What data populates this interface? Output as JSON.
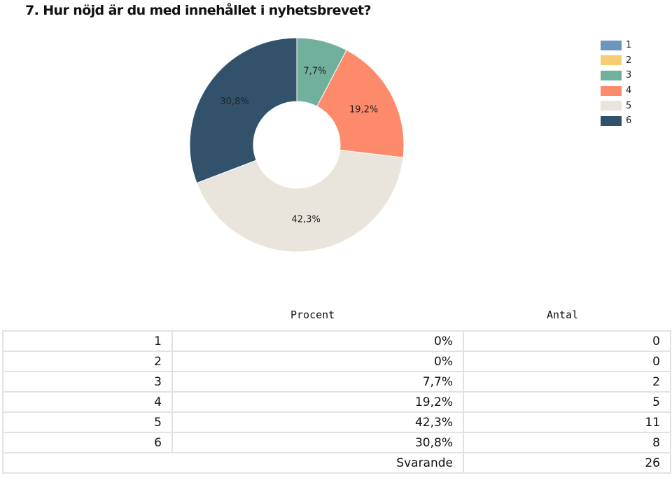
{
  "title": "7. Hur nöjd är du med innehållet i nyhetsbrevet?",
  "chart_data": {
    "type": "pie",
    "style": "donut",
    "title": "7. Hur nöjd är du med innehållet i nyhetsbrevet?",
    "categories": [
      "1",
      "2",
      "3",
      "4",
      "5",
      "6"
    ],
    "values": [
      0,
      0,
      7.7,
      19.2,
      42.3,
      30.8
    ],
    "labels": [
      "0%",
      "0%",
      "7,7%",
      "19,2%",
      "42,3%",
      "30,8%"
    ],
    "colors": [
      "#6b96bd",
      "#f8cc72",
      "#72b09e",
      "#fd8a6b",
      "#e9e5dd",
      "#31526a"
    ],
    "legend_position": "top-right"
  },
  "legend": [
    "1",
    "2",
    "3",
    "4",
    "5",
    "6"
  ],
  "table": {
    "headers": {
      "percent": "Procent",
      "count": "Antal"
    },
    "rows": [
      {
        "label": "1",
        "percent": "0%",
        "count": "0"
      },
      {
        "label": "2",
        "percent": "0%",
        "count": "0"
      },
      {
        "label": "3",
        "percent": "7,7%",
        "count": "2"
      },
      {
        "label": "4",
        "percent": "19,2%",
        "count": "5"
      },
      {
        "label": "5",
        "percent": "42,3%",
        "count": "11"
      },
      {
        "label": "6",
        "percent": "30,8%",
        "count": "8"
      }
    ],
    "total": {
      "label": "Svarande",
      "count": "26"
    }
  }
}
